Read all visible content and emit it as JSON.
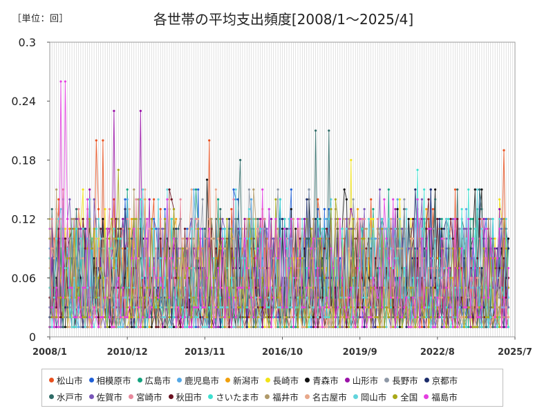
{
  "unit_label": "［単位：回］",
  "chart_data": {
    "type": "line",
    "title": "各世帯の平均支出頻度[2008/1～2025/4]",
    "ylim": [
      0,
      0.3
    ],
    "y_ticks": [
      "0",
      "0.06",
      "0.12",
      "0.18",
      "0.24",
      "0.3"
    ],
    "x_ticks": [
      "2008/1",
      "2010/12",
      "2013/11",
      "2016/10",
      "2019/9",
      "2022/8",
      "2025/7"
    ],
    "x_range": [
      "2008/1",
      "2025/7"
    ],
    "grid": "vertical",
    "legend_placement": "bottom",
    "series": [
      {
        "name": "松山市",
        "color": "#e8501e",
        "peaks": [
          {
            "x": "2009/10",
            "y": 0.2
          },
          {
            "x": "2010/1",
            "y": 0.2
          },
          {
            "x": "2014/1",
            "y": 0.2
          },
          {
            "x": "2025/2",
            "y": 0.19
          }
        ]
      },
      {
        "name": "相模原市",
        "color": "#1f5fd6",
        "peaks": []
      },
      {
        "name": "広島市",
        "color": "#14a37f",
        "peaks": []
      },
      {
        "name": "鹿児島市",
        "color": "#55a8e6",
        "peaks": []
      },
      {
        "name": "新潟市",
        "color": "#f0a00c",
        "peaks": []
      },
      {
        "name": "長崎市",
        "color": "#f2e317",
        "peaks": [
          {
            "x": "2019/5",
            "y": 0.18
          }
        ]
      },
      {
        "name": "青森市",
        "color": "#111111",
        "peaks": [
          {
            "x": "2013/12",
            "y": 0.16
          },
          {
            "x": "2024/1",
            "y": 0.15
          }
        ]
      },
      {
        "name": "山形市",
        "color": "#9a12a8",
        "peaks": [
          {
            "x": "2010/6",
            "y": 0.23
          },
          {
            "x": "2011/6",
            "y": 0.23
          }
        ]
      },
      {
        "name": "長野市",
        "color": "#8e98a6",
        "peaks": []
      },
      {
        "name": "京都市",
        "color": "#1c2d6b",
        "peaks": []
      },
      {
        "name": "水戸市",
        "color": "#2f6b67",
        "peaks": [
          {
            "x": "2015/3",
            "y": 0.18
          },
          {
            "x": "2018/1",
            "y": 0.21
          },
          {
            "x": "2018/7",
            "y": 0.21
          }
        ]
      },
      {
        "name": "佐賀市",
        "color": "#7855b8",
        "peaks": []
      },
      {
        "name": "宮崎市",
        "color": "#e8889c",
        "peaks": []
      },
      {
        "name": "秋田市",
        "color": "#6a1020",
        "peaks": []
      },
      {
        "name": "さいたま市",
        "color": "#3de0d0",
        "peaks": [
          {
            "x": "2021/11",
            "y": 0.17
          }
        ]
      },
      {
        "name": "福井市",
        "color": "#b09a6a",
        "peaks": []
      },
      {
        "name": "名古屋市",
        "color": "#e8a88a",
        "peaks": []
      },
      {
        "name": "岡山市",
        "color": "#62d4dc",
        "peaks": []
      },
      {
        "name": "全国",
        "color": "#a8a818",
        "peaks": [
          {
            "x": "2010/8",
            "y": 0.17
          }
        ]
      },
      {
        "name": "福島市",
        "color": "#e43ee0",
        "peaks": [
          {
            "x": "2008/6",
            "y": 0.26
          },
          {
            "x": "2008/8",
            "y": 0.26
          }
        ]
      }
    ]
  }
}
